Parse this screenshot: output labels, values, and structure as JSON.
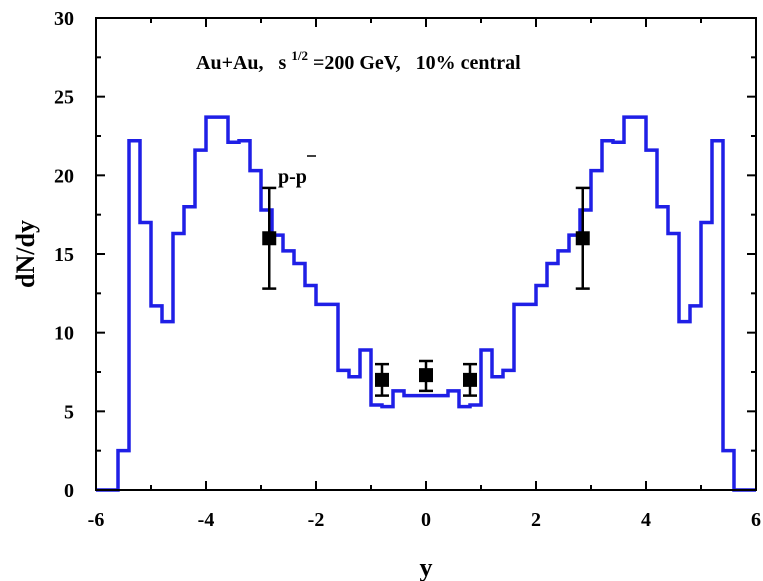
{
  "chart_data": {
    "type": "line",
    "title": "",
    "xlabel": "y",
    "ylabel": "dN/dy",
    "xlim": [
      -6,
      6
    ],
    "ylim": [
      0,
      30
    ],
    "x_ticks": [
      -6,
      -4,
      -2,
      0,
      2,
      4,
      6
    ],
    "x_tick_labels": [
      "-6",
      "-4",
      "-2",
      "0",
      "2",
      "4",
      "6"
    ],
    "y_ticks": [
      0,
      5,
      10,
      15,
      20,
      25,
      30
    ],
    "y_tick_labels": [
      "0",
      "5",
      "10",
      "15",
      "20",
      "25",
      "30"
    ],
    "grid": false,
    "annotations": {
      "system": "Au+Au,",
      "energy_symbol": "s",
      "energy_exponent": "1/2",
      "energy_value": "=200 GeV,",
      "centrality": "10% central",
      "particle": "p-p"
    },
    "series": [
      {
        "style": "step",
        "color": "#1f1fe6",
        "bin_edges": [
          -5.8,
          -5.6,
          -5.4,
          -5.2,
          -5.0,
          -4.8,
          -4.6,
          -4.4,
          -4.2,
          -4.0,
          -3.8,
          -3.6,
          -3.4,
          -3.2,
          -3.0,
          -2.8,
          -2.6,
          -2.4,
          -2.2,
          -2.0,
          -1.8,
          -1.6,
          -1.4,
          -1.2,
          -1.0,
          -0.8,
          -0.6,
          -0.4,
          -0.2,
          0.0,
          0.2,
          0.4,
          0.6,
          0.8,
          1.0,
          1.2,
          1.4,
          1.6,
          1.8,
          2.0,
          2.2,
          2.4,
          2.6,
          2.8,
          3.0,
          3.2,
          3.4,
          3.6,
          3.8,
          4.0,
          4.2,
          4.4,
          4.6,
          4.8,
          5.0,
          5.2,
          5.4,
          5.6,
          5.8
        ],
        "values": [
          0,
          2.5,
          22.2,
          17.0,
          11.7,
          10.7,
          16.3,
          18.0,
          21.6,
          23.7,
          23.7,
          22.1,
          22.2,
          20.3,
          17.8,
          16.2,
          15.2,
          14.4,
          13.0,
          11.8,
          11.8,
          7.6,
          7.2,
          8.9,
          5.4,
          5.3,
          6.3,
          6.0,
          6.0,
          6.0,
          6.0,
          6.3,
          5.3,
          5.4,
          8.9,
          7.2,
          7.6,
          11.8,
          11.8,
          13.0,
          14.4,
          15.2,
          16.2,
          17.8,
          20.3,
          22.2,
          22.1,
          23.7,
          23.7,
          21.6,
          18.0,
          16.3,
          10.7,
          11.7,
          17.0,
          22.2,
          2.5,
          0
        ],
        "x_start": -6.0,
        "x_end": 6.0
      },
      {
        "style": "errorbar-points",
        "color": "#000000",
        "marker": "square",
        "points": [
          {
            "x": -2.85,
            "y": 16.0,
            "yerr_low": 12.8,
            "yerr_high": 19.2
          },
          {
            "x": -0.8,
            "y": 7.0,
            "yerr_low": 6.0,
            "yerr_high": 8.0
          },
          {
            "x": 0.0,
            "y": 7.3,
            "yerr_low": 6.3,
            "yerr_high": 8.2
          },
          {
            "x": 0.8,
            "y": 7.0,
            "yerr_low": 6.0,
            "yerr_high": 8.0
          },
          {
            "x": 2.85,
            "y": 16.0,
            "yerr_low": 12.8,
            "yerr_high": 19.2
          }
        ]
      }
    ]
  }
}
